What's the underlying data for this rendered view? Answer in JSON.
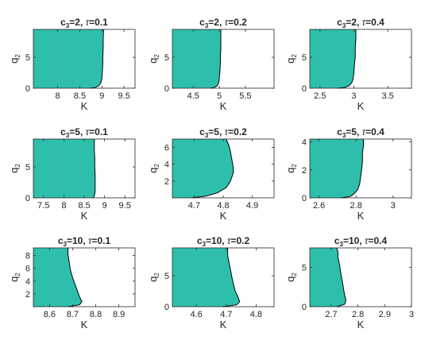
{
  "colors": {
    "fill": "#2ebfac",
    "edge": "#000000",
    "axis": "#262626"
  },
  "chart_data": [
    {
      "type": "area",
      "title": {
        "c": "c",
        "sub": "3",
        "rest": "=2, ",
        "tau": "τ",
        "val": "=0.1"
      },
      "xlabel": "K",
      "ylabel": {
        "base": "q",
        "sub": "2"
      },
      "xlim": [
        7.45,
        9.75
      ],
      "ylim": [
        0,
        9.5
      ],
      "xticks": [
        8,
        8.5,
        9,
        9.5
      ],
      "xticklabels": [
        "8",
        "8.5",
        "9",
        "9.5"
      ],
      "yticks": [
        0,
        5
      ],
      "yticklabels": [
        "0",
        "5"
      ],
      "boundary": {
        "K": [
          8.72,
          8.85,
          8.93,
          8.98,
          9.0,
          9.01,
          9.02,
          9.02,
          9.03,
          9.03,
          9.04
        ],
        "q": [
          0,
          0.1,
          0.4,
          0.9,
          1.6,
          2.5,
          4,
          5,
          6.5,
          8,
          9.5
        ]
      }
    },
    {
      "type": "area",
      "title": {
        "c": "c",
        "sub": "3",
        "rest": "=2, ",
        "tau": "τ",
        "val": "=0.2"
      },
      "xlabel": "K",
      "ylabel": {
        "base": "q",
        "sub": "2"
      },
      "xlim": [
        4.1,
        6.05
      ],
      "ylim": [
        0,
        9.5
      ],
      "xticks": [
        4.5,
        5,
        5.5
      ],
      "xticklabels": [
        "4.5",
        "5",
        "5.5"
      ],
      "yticks": [
        0,
        5
      ],
      "yticklabels": [
        "0",
        "5"
      ],
      "boundary": {
        "K": [
          4.82,
          4.9,
          4.96,
          4.99,
          5.0,
          5.01,
          5.02,
          5.02,
          5.03,
          5.03,
          5.03
        ],
        "q": [
          0,
          0.1,
          0.4,
          0.9,
          1.6,
          2.5,
          4,
          5,
          6.5,
          8,
          9.5
        ]
      }
    },
    {
      "type": "area",
      "title": {
        "c": "c",
        "sub": "3",
        "rest": "=2, ",
        "tau": "τ",
        "val": "=0.4"
      },
      "xlabel": "K",
      "ylabel": {
        "base": "q",
        "sub": "2"
      },
      "xlim": [
        2.35,
        3.85
      ],
      "ylim": [
        0,
        9.5
      ],
      "xticks": [
        2.5,
        3,
        3.5
      ],
      "xticklabels": [
        "2.5",
        "3",
        "3.5"
      ],
      "yticks": [
        0,
        5
      ],
      "yticklabels": [
        "0",
        "5"
      ],
      "boundary": {
        "K": [
          2.76,
          2.86,
          2.93,
          2.97,
          2.99,
          3.0,
          3.01,
          3.02,
          3.02,
          3.03,
          3.03
        ],
        "q": [
          0,
          0.1,
          0.4,
          0.9,
          1.6,
          2.5,
          4,
          5,
          6.5,
          8,
          9.5
        ]
      }
    },
    {
      "type": "area",
      "title": {
        "c": "c",
        "sub": "3",
        "rest": "=5, ",
        "tau": "τ",
        "val": "=0.1"
      },
      "xlabel": "K",
      "ylabel": {
        "base": "q",
        "sub": "2"
      },
      "xlim": [
        7.25,
        9.75
      ],
      "ylim": [
        0,
        9.5
      ],
      "xticks": [
        7.5,
        8,
        8.5,
        9,
        9.5
      ],
      "xticklabels": [
        "7.5",
        "8",
        "8.5",
        "9",
        "9.5"
      ],
      "yticks": [
        0,
        5
      ],
      "yticklabels": [
        "0",
        "5"
      ],
      "boundary": {
        "K": [
          8.72,
          8.74,
          8.76,
          8.77,
          8.77,
          8.77,
          8.76,
          8.76,
          8.75,
          8.75,
          8.75
        ],
        "q": [
          0,
          0.2,
          0.6,
          1.2,
          2.2,
          3.5,
          5,
          6.5,
          7.5,
          8.5,
          9.5
        ]
      }
    },
    {
      "type": "area",
      "title": {
        "c": "c",
        "sub": "3",
        "rest": "=5, ",
        "tau": "τ",
        "val": "=0.2"
      },
      "xlabel": "K",
      "ylabel": {
        "base": "q",
        "sub": "2"
      },
      "xlim": [
        4.625,
        4.975
      ],
      "ylim": [
        0,
        7
      ],
      "xticks": [
        4.7,
        4.8,
        4.9
      ],
      "xticklabels": [
        "4.7",
        "4.8",
        "4.9"
      ],
      "yticks": [
        2,
        4,
        6
      ],
      "yticklabels": [
        "2",
        "4",
        "6"
      ],
      "boundary": {
        "K": [
          4.69,
          4.74,
          4.78,
          4.81,
          4.825,
          4.835,
          4.835,
          4.83,
          4.825,
          4.82,
          4.81
        ],
        "q": [
          0,
          0.2,
          0.6,
          1.2,
          2.0,
          3.0,
          3.5,
          4.5,
          5.5,
          6.2,
          7
        ]
      }
    },
    {
      "type": "area",
      "title": {
        "c": "c",
        "sub": "3",
        "rest": "=5, ",
        "tau": "τ",
        "val": "=0.4"
      },
      "xlabel": "K",
      "ylabel": {
        "base": "q",
        "sub": "2"
      },
      "xlim": [
        2.55,
        3.1
      ],
      "ylim": [
        0,
        4.2
      ],
      "xticks": [
        2.6,
        2.8,
        3
      ],
      "xticklabels": [
        "2.6",
        "2.8",
        "3"
      ],
      "yticks": [
        0,
        2,
        4
      ],
      "yticklabels": [
        "0",
        "2",
        "4"
      ],
      "boundary": {
        "K": [
          2.72,
          2.77,
          2.79,
          2.81,
          2.82,
          2.825,
          2.83,
          2.835,
          2.835,
          2.84,
          2.84
        ],
        "q": [
          0,
          0.1,
          0.3,
          0.6,
          1.0,
          1.5,
          2.0,
          2.6,
          3.2,
          3.7,
          4.2
        ]
      }
    },
    {
      "type": "area",
      "title": {
        "c": "c",
        "sub": "3",
        "rest": "=10, ",
        "tau": "τ",
        "val": "=0.1"
      },
      "xlabel": "K",
      "ylabel": {
        "base": "q",
        "sub": "2"
      },
      "xlim": [
        8.53,
        8.97
      ],
      "ylim": [
        0,
        9.2
      ],
      "xticks": [
        8.6,
        8.7,
        8.8,
        8.9
      ],
      "xticklabels": [
        "8.6",
        "8.7",
        "8.8",
        "8.9"
      ],
      "yticks": [
        2,
        4,
        6,
        8
      ],
      "yticklabels": [
        "2",
        "4",
        "6",
        "8"
      ],
      "boundary": {
        "K": [
          8.68,
          8.73,
          8.74,
          8.73,
          8.72,
          8.71,
          8.7,
          8.69,
          8.685,
          8.68,
          8.68
        ],
        "q": [
          0,
          0.3,
          0.8,
          1.5,
          2.5,
          3.5,
          4.5,
          5.8,
          7.0,
          8.2,
          9.2
        ]
      }
    },
    {
      "type": "area",
      "title": {
        "c": "c",
        "sub": "3",
        "rest": "=10, ",
        "tau": "τ",
        "val": "=0.2"
      },
      "xlabel": "K",
      "ylabel": {
        "base": "q",
        "sub": "2"
      },
      "xlim": [
        4.52,
        4.86
      ],
      "ylim": [
        0,
        9.5
      ],
      "xticks": [
        4.6,
        4.7,
        4.8
      ],
      "xticklabels": [
        "4.6",
        "4.7",
        "4.8"
      ],
      "yticks": [
        0,
        5
      ],
      "yticklabels": [
        "0",
        "5"
      ],
      "boundary": {
        "K": [
          4.69,
          4.735,
          4.745,
          4.74,
          4.73,
          4.725,
          4.72,
          4.715,
          4.71,
          4.705,
          4.705
        ],
        "q": [
          0,
          0.3,
          0.8,
          1.5,
          2.5,
          3.5,
          4.5,
          5.8,
          7.0,
          8.2,
          9.5
        ]
      }
    },
    {
      "type": "area",
      "title": {
        "c": "c",
        "sub": "3",
        "rest": "=10, ",
        "tau": "τ",
        "val": "=0.4"
      },
      "xlabel": "K",
      "ylabel": {
        "base": "q",
        "sub": "2"
      },
      "xlim": [
        2.62,
        3.0
      ],
      "ylim": [
        0,
        7.5
      ],
      "xticks": [
        2.7,
        2.8,
        2.9,
        3
      ],
      "xticklabels": [
        "2.7",
        "2.8",
        "2.9",
        "3"
      ],
      "yticks": [
        0,
        5
      ],
      "yticklabels": [
        "0",
        "5"
      ],
      "boundary": {
        "K": [
          2.72,
          2.75,
          2.755,
          2.75,
          2.745,
          2.74,
          2.735,
          2.73,
          2.725,
          2.725,
          2.72
        ],
        "q": [
          0,
          0.3,
          0.8,
          1.5,
          2.5,
          3.5,
          4.5,
          5.5,
          6.3,
          7.0,
          7.5
        ]
      }
    }
  ]
}
